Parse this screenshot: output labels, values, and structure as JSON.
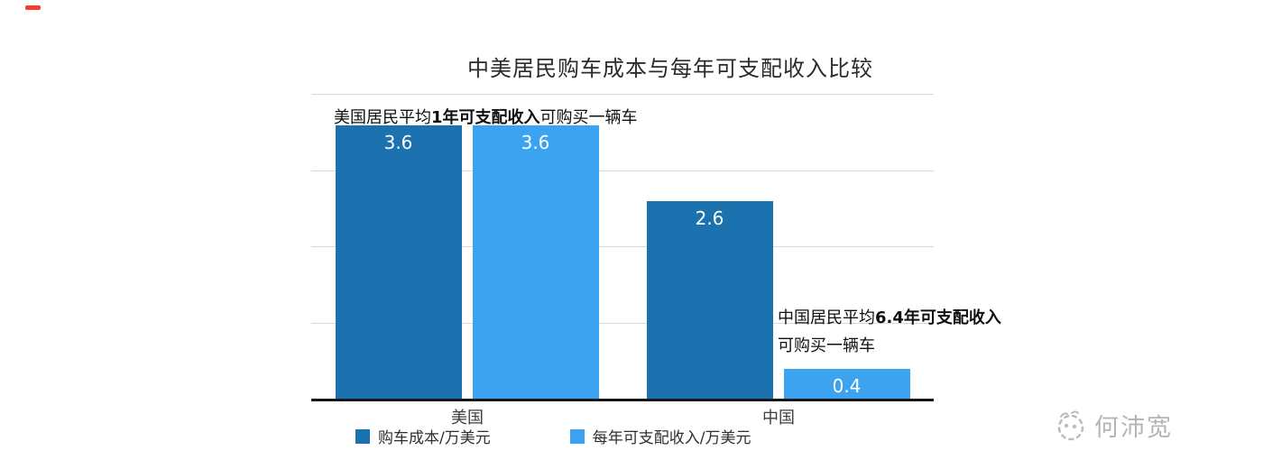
{
  "title": "中美居民购车成本与每年可支配收入比较",
  "chart_data": {
    "type": "bar",
    "categories": [
      "美国",
      "中国"
    ],
    "series": [
      {
        "name": "购车成本/万美元",
        "color": "#1c72ae",
        "values": [
          3.6,
          2.6
        ]
      },
      {
        "name": "每年可支配收入/万美元",
        "color": "#3ba3ef",
        "values": [
          3.6,
          0.4
        ]
      }
    ],
    "ylim": [
      0,
      4
    ],
    "gridline_values": [
      1,
      2,
      3,
      4
    ],
    "grid": true,
    "value_labels": [
      "3.6",
      "3.6",
      "2.6",
      "0.4"
    ],
    "legend_position": "bottom",
    "annotations": {
      "usa": {
        "pre": "美国居民平均",
        "bold": "1年可支配收入",
        "post": "可购买一辆车"
      },
      "china": {
        "line1_pre": "中国居民平均",
        "line1_bold": "6.4年可支配收入",
        "line2": "可购买一辆车"
      }
    }
  },
  "watermark": {
    "text": "何沛宽",
    "icon": "smiley-face-logo"
  }
}
